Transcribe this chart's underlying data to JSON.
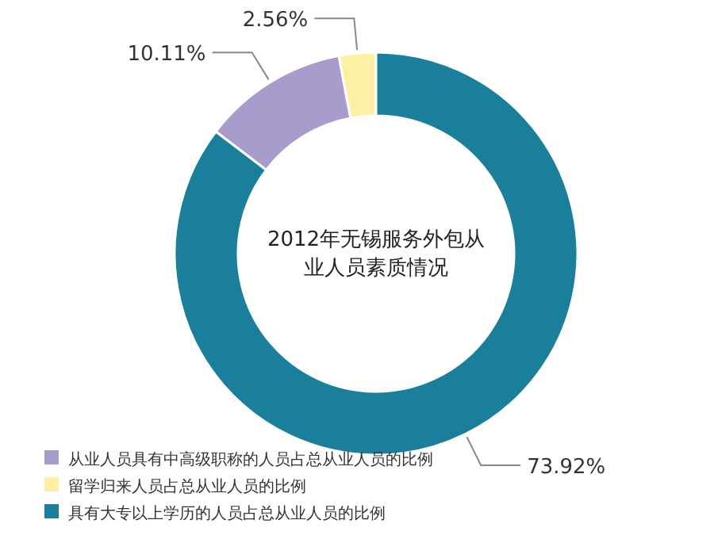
{
  "chart_data": {
    "type": "donut",
    "title": "2012年无锡服务外包从业人员素质情况",
    "categories": [
      "从业人员具有中高级职称的人员占总从业人员的比例",
      "留学归来人员占总从业人员的比例",
      "具有大专以上学历的人员占总从业人员的比例"
    ],
    "values": [
      10.11,
      2.56,
      73.92
    ],
    "value_labels": [
      "10.11%",
      "2.56%",
      "73.92%"
    ],
    "colors": [
      "#a99bcc",
      "#fdf0a4",
      "#1a7f9b"
    ],
    "legend": "bottom left"
  }
}
